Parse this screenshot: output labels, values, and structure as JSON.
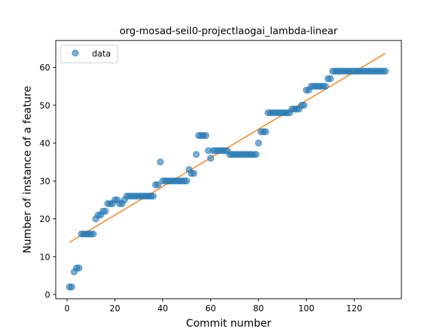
{
  "chart_data": {
    "type": "scatter",
    "title": "org-mosad-seil0-projectlaogai_lambda-linear",
    "xlabel": "Commit number",
    "ylabel": "Number of instance of a feature",
    "xlim": [
      -4.7,
      139.7
    ],
    "ylim": [
      -1.1,
      67.1
    ],
    "xticks": [
      0,
      20,
      40,
      60,
      80,
      100,
      120
    ],
    "yticks": [
      0,
      10,
      20,
      30,
      40,
      50,
      60
    ],
    "legend": {
      "position": "top-left",
      "entries": [
        {
          "label": "data",
          "marker": "circle"
        }
      ]
    },
    "colors": {
      "data": "#1f77b4",
      "fit": "#ff7f0e"
    },
    "series": [
      {
        "name": "data",
        "kind": "scatter",
        "x": [
          1,
          2,
          3,
          4,
          5,
          6,
          7,
          8,
          9,
          10,
          11,
          12,
          13,
          14,
          15,
          16,
          17,
          18,
          19,
          20,
          21,
          22,
          23,
          24,
          25,
          26,
          27,
          28,
          29,
          30,
          31,
          32,
          33,
          34,
          35,
          36,
          37,
          38,
          39,
          40,
          41,
          42,
          43,
          44,
          45,
          46,
          47,
          48,
          49,
          50,
          51,
          52,
          53,
          54,
          55,
          56,
          57,
          58,
          59,
          60,
          61,
          62,
          63,
          64,
          65,
          66,
          67,
          68,
          69,
          70,
          71,
          72,
          73,
          74,
          75,
          76,
          77,
          78,
          79,
          80,
          81,
          82,
          83,
          84,
          85,
          86,
          87,
          88,
          89,
          90,
          91,
          92,
          93,
          94,
          95,
          96,
          97,
          98,
          99,
          100,
          101,
          102,
          103,
          104,
          105,
          106,
          107,
          108,
          109,
          110,
          111,
          112,
          113,
          114,
          115,
          116,
          117,
          118,
          119,
          120,
          121,
          122,
          123,
          124,
          125,
          126,
          127,
          128,
          129,
          130,
          131,
          132,
          133
        ],
        "y": [
          2,
          2,
          6,
          7,
          7,
          16,
          16,
          16,
          16,
          16,
          16,
          20,
          21,
          21,
          22,
          22,
          24,
          24,
          24,
          25,
          25,
          24,
          24,
          25,
          26,
          26,
          26,
          26,
          26,
          26,
          26,
          26,
          26,
          26,
          26,
          26,
          29,
          29,
          35,
          30,
          30,
          30,
          30,
          30,
          30,
          30,
          30,
          30,
          30,
          30,
          33,
          32,
          32,
          37,
          42,
          42,
          42,
          42,
          38,
          36,
          38,
          38,
          38,
          38,
          38,
          38,
          38,
          37,
          37,
          37,
          37,
          37,
          37,
          37,
          37,
          37,
          37,
          37,
          37,
          40,
          43,
          43,
          43,
          48,
          48,
          48,
          48,
          48,
          48,
          48,
          48,
          48,
          48,
          49,
          49,
          49,
          49,
          50,
          50,
          54,
          54,
          55,
          55,
          55,
          55,
          55,
          55,
          55,
          57,
          57,
          59,
          59,
          59,
          59,
          59,
          59,
          59,
          59,
          59,
          59,
          59,
          59,
          59,
          59,
          59,
          59,
          59,
          59,
          59,
          59,
          59,
          59,
          59
        ]
      },
      {
        "kind": "line",
        "x": [
          1,
          133
        ],
        "y": [
          13.8,
          63.7
        ]
      }
    ]
  }
}
